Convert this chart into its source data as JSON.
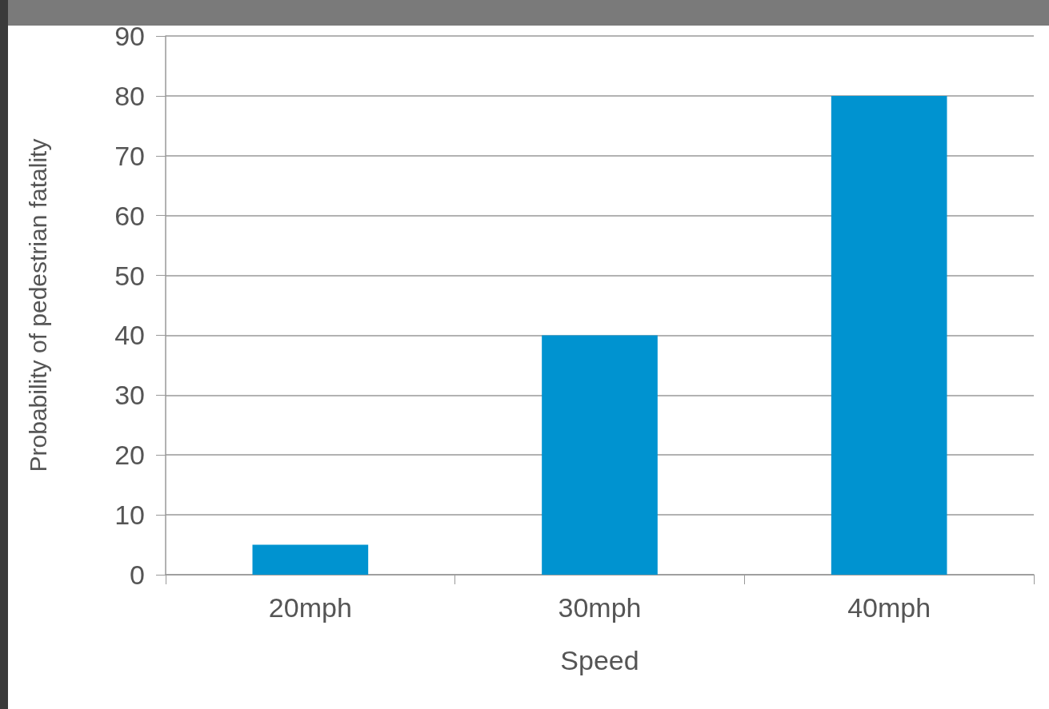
{
  "chart_data": {
    "type": "bar",
    "xlabel": "Speed",
    "ylabel": "Probability of pedestrian fatality",
    "categories": [
      "20mph",
      "30mph",
      "40mph"
    ],
    "values": [
      5,
      40,
      80
    ],
    "color": "#0093d0",
    "ylim": [
      0,
      90
    ],
    "yticks": [
      0,
      10,
      20,
      30,
      40,
      50,
      60,
      70,
      80,
      90
    ],
    "grid": "y"
  }
}
